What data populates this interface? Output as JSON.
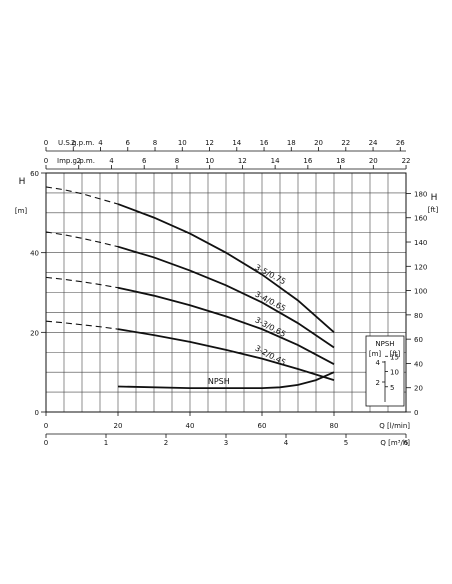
{
  "chart_data": {
    "type": "line",
    "axes": {
      "usgpm": {
        "label": "U.S.g.p.m.",
        "ticks": [
          0,
          2,
          4,
          6,
          8,
          10,
          12,
          14,
          16,
          18,
          20,
          22,
          24,
          26
        ]
      },
      "impgpm": {
        "label": "Imp.g.p.m.",
        "ticks": [
          0,
          2,
          4,
          6,
          8,
          10,
          12,
          14,
          16,
          18,
          20,
          22
        ]
      },
      "head_m": {
        "label_top": "H",
        "label_unit": "[m]",
        "ticks": [
          0,
          20,
          40,
          60
        ],
        "ylim": [
          0,
          60
        ]
      },
      "head_ft": {
        "label_top": "H",
        "label_unit": "[ft]",
        "ticks": [
          0,
          20,
          40,
          60,
          80,
          100,
          120,
          140,
          160,
          180
        ]
      },
      "flow_lmin": {
        "label": "Q [l/min]",
        "ticks": [
          0,
          20,
          40,
          60,
          80
        ],
        "xlim": [
          0,
          100
        ]
      },
      "flow_m3h": {
        "label": "Q [m³/h]",
        "ticks": [
          0,
          1,
          2,
          3,
          4,
          5,
          6
        ]
      }
    },
    "series": [
      {
        "name": "3-5/0.75",
        "dashed_x": [
          0,
          5,
          10,
          15,
          20
        ],
        "dashed_y": [
          56.5,
          55.8,
          54.8,
          53.5,
          52.2
        ],
        "x": [
          20,
          30,
          40,
          50,
          60,
          70,
          80
        ],
        "y": [
          52.2,
          48.8,
          44.8,
          40.0,
          34.5,
          28.0,
          20.0
        ]
      },
      {
        "name": "3-4/0.65",
        "dashed_x": [
          0,
          5,
          10,
          15,
          20
        ],
        "dashed_y": [
          45.2,
          44.5,
          43.6,
          42.6,
          41.5
        ],
        "x": [
          20,
          30,
          40,
          50,
          60,
          70,
          80
        ],
        "y": [
          41.5,
          38.8,
          35.5,
          31.8,
          27.5,
          22.3,
          16.2
        ]
      },
      {
        "name": "3-3/0.65",
        "dashed_x": [
          0,
          5,
          10,
          15,
          20
        ],
        "dashed_y": [
          33.8,
          33.3,
          32.7,
          32.0,
          31.2
        ],
        "x": [
          20,
          30,
          40,
          50,
          60,
          70,
          80
        ],
        "y": [
          31.2,
          29.2,
          26.8,
          24.0,
          20.8,
          16.8,
          12.0
        ]
      },
      {
        "name": "3-2/0.45",
        "dashed_x": [
          0,
          5,
          10,
          15,
          20
        ],
        "dashed_y": [
          22.8,
          22.4,
          21.9,
          21.4,
          20.8
        ],
        "x": [
          20,
          30,
          40,
          50,
          60,
          70,
          80
        ],
        "y": [
          20.8,
          19.3,
          17.6,
          15.6,
          13.4,
          10.8,
          8.0
        ]
      }
    ],
    "npsh": {
      "name": "NPSH",
      "x": [
        20,
        40,
        60,
        65,
        70,
        75,
        80
      ],
      "y": [
        6.4,
        6.0,
        6.0,
        6.2,
        6.8,
        8.0,
        10.0
      ]
    },
    "npsh_scale": {
      "title": "NPSH",
      "m_label": "[m]",
      "ft_label": "[ft]",
      "m_ticks": [
        2,
        4
      ],
      "ft_ticks": [
        5,
        10,
        15
      ]
    },
    "grid": true
  }
}
